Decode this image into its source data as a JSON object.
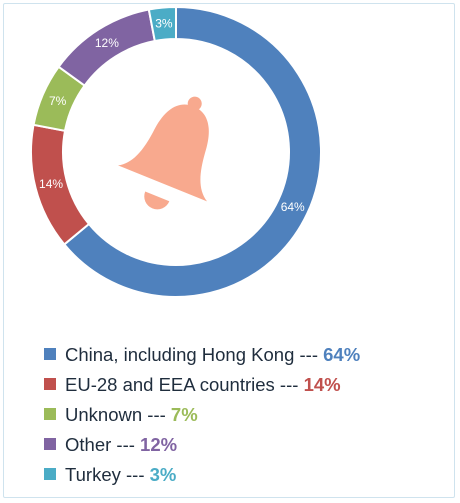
{
  "chart_data": {
    "type": "pie",
    "title": "",
    "categories": [
      "China, including Hong Kong",
      "EU-28 and EEA countries",
      "Unknown",
      "Other",
      "Turkey"
    ],
    "values": [
      64,
      14,
      7,
      12,
      3
    ],
    "value_labels": [
      "64%",
      "14%",
      "7%",
      "12%",
      "3%"
    ],
    "colors": [
      "#4f81bd",
      "#c0504d",
      "#9bbb59",
      "#8064a2",
      "#4bacc6"
    ],
    "legend_position": "bottom-left",
    "start_angle_deg": 0,
    "direction": "clockwise",
    "center_icon": "bell-icon",
    "center_icon_color": "#f8a98e"
  },
  "legend": {
    "items": [
      {
        "label": "China, including Hong Kong",
        "separator": " --- ",
        "value": "64%"
      },
      {
        "label": "EU-28 and EEA countries",
        "separator": " --- ",
        "value": "14%"
      },
      {
        "label": "Unknown",
        "separator": " --- ",
        "value": "7%"
      },
      {
        "label": "Other",
        "separator": " --- ",
        "value": "12%"
      },
      {
        "label": "Turkey",
        "separator": " --- ",
        "value": "3%"
      }
    ]
  }
}
